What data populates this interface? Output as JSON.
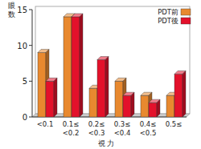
{
  "chart_data": {
    "type": "bar",
    "ylabel": "眼数",
    "xlabel": "視 力",
    "categories": [
      "<0.1",
      "0.1≤\n<0.2",
      "0.2≤\n<0.3",
      "0.3≤\n<0.4",
      "0.4≤\n<0.5",
      "0.5≤"
    ],
    "series": [
      {
        "name": "PDT前",
        "color": "#e8892f",
        "values": [
          9,
          14,
          4,
          5,
          3,
          3
        ]
      },
      {
        "name": "PDT後",
        "color": "#e3112b",
        "values": [
          5,
          14,
          8,
          3,
          2,
          6
        ]
      }
    ],
    "ylim": [
      0,
      15
    ],
    "yticks": [
      0,
      5,
      10,
      15
    ],
    "legend": "upper right"
  }
}
